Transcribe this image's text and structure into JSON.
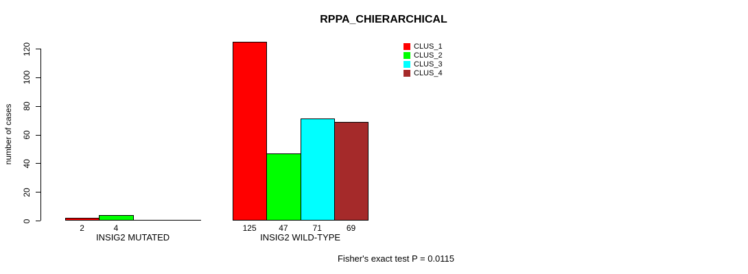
{
  "page": {
    "background_color": "#FFFFFF",
    "text_color": "#000000"
  },
  "chart_data": {
    "type": "bar",
    "title": "RPPA_CHIERARCHICAL",
    "ylabel": "number of cases",
    "xlabel": "",
    "ylim": [
      0,
      125
    ],
    "yticks": [
      0,
      20,
      40,
      60,
      80,
      100,
      120
    ],
    "grid": false,
    "bar_border_color": "#000000",
    "categories": [
      "INSIG2 MUTATED",
      "INSIG2 WILD-TYPE"
    ],
    "series": [
      {
        "name": "CLUS_1",
        "color": "#FF0000",
        "values": [
          2,
          125
        ]
      },
      {
        "name": "CLUS_2",
        "color": "#00FF00",
        "values": [
          4,
          47
        ]
      },
      {
        "name": "CLUS_3",
        "color": "#00FFFF",
        "values": [
          0,
          71
        ]
      },
      {
        "name": "CLUS_4",
        "color": "#A52A2A",
        "values": [
          0,
          69
        ]
      }
    ],
    "value_labels_shown": [
      [
        2,
        4
      ],
      [
        125,
        47,
        71,
        69
      ]
    ],
    "legend": {
      "position": "top-right",
      "entries": [
        "CLUS_1",
        "CLUS_2",
        "CLUS_3",
        "CLUS_4"
      ]
    },
    "annotation": "Fisher's exact test P = 0.0115"
  }
}
